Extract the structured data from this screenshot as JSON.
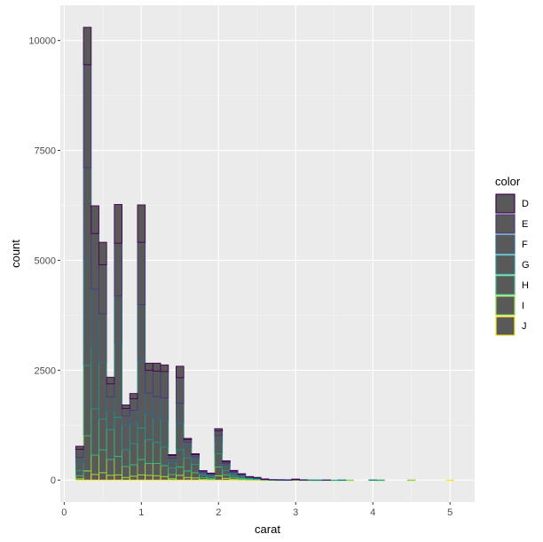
{
  "chart_data": {
    "type": "bar",
    "stacked": true,
    "xlabel": "carat",
    "ylabel": "count",
    "xlim": [
      -0.05,
      5.32
    ],
    "ylim": [
      -500,
      10800
    ],
    "x_ticks": [
      0,
      1,
      2,
      3,
      4,
      5
    ],
    "y_ticks": [
      0,
      2500,
      5000,
      7500,
      10000
    ],
    "y_tick_labels": [
      "0",
      "2500",
      "5000",
      "7500",
      "10000"
    ],
    "bin_width": 0.1,
    "bins_x": [
      0.2,
      0.3,
      0.4,
      0.5,
      0.6,
      0.7,
      0.8,
      0.9,
      1.0,
      1.1,
      1.2,
      1.3,
      1.4,
      1.5,
      1.6,
      1.7,
      1.8,
      1.9,
      2.0,
      2.1,
      2.2,
      2.3,
      2.4,
      2.5,
      2.6,
      2.7,
      2.8,
      2.9,
      3.0,
      3.1,
      3.2,
      3.3,
      3.4,
      3.5,
      3.6,
      3.7,
      3.8,
      3.9,
      4.0,
      4.1,
      4.2,
      4.3,
      4.4,
      4.5,
      4.6,
      4.7,
      4.8,
      4.9,
      5.0
    ],
    "legend_title": "color",
    "legend_position": "right",
    "panel_background": "#ebebeb",
    "grid": true,
    "bar_fill": "#595959",
    "series": [
      {
        "name": "J",
        "outline": "#fde725",
        "values": [
          30,
          210,
          130,
          170,
          110,
          120,
          60,
          90,
          120,
          110,
          100,
          80,
          30,
          110,
          60,
          50,
          15,
          10,
          100,
          40,
          20,
          10,
          5,
          5,
          2,
          2,
          1,
          1,
          3,
          1,
          1,
          0,
          1,
          0,
          1,
          0,
          0,
          0,
          1,
          0,
          0,
          0,
          0,
          1,
          0,
          0,
          0,
          0,
          1
        ]
      },
      {
        "name": "I",
        "outline": "#8fd744",
        "values": [
          70,
          800,
          440,
          520,
          360,
          420,
          250,
          260,
          350,
          270,
          280,
          250,
          100,
          190,
          150,
          120,
          40,
          25,
          200,
          80,
          40,
          25,
          15,
          10,
          5,
          3,
          2,
          2,
          5,
          2,
          1,
          1,
          1,
          0,
          1,
          1,
          0,
          0,
          2,
          1,
          0,
          0,
          0,
          1,
          0,
          0,
          0,
          0,
          0
        ]
      },
      {
        "name": "H",
        "outline": "#35b779",
        "values": [
          120,
          1600,
          1050,
          700,
          680,
          890,
          380,
          480,
          720,
          540,
          480,
          420,
          150,
          390,
          300,
          190,
          60,
          45,
          300,
          100,
          50,
          35,
          20,
          15,
          8,
          4,
          3,
          2,
          5,
          2,
          1,
          1,
          1,
          1,
          1,
          0,
          0,
          0,
          1,
          1,
          0,
          0,
          0,
          0,
          0,
          0,
          0,
          0,
          0
        ]
      },
      {
        "name": "G",
        "outline": "#21908d",
        "values": [
          170,
          2400,
          1420,
          1290,
          420,
          1680,
          560,
          470,
          1520,
          580,
          540,
          620,
          120,
          620,
          240,
          110,
          40,
          35,
          260,
          90,
          40,
          30,
          20,
          15,
          6,
          3,
          2,
          1,
          3,
          1,
          1,
          1,
          1,
          0,
          1,
          0,
          0,
          0,
          1,
          0,
          0,
          0,
          0,
          0,
          0,
          0,
          0,
          0,
          0
        ]
      },
      {
        "name": "F",
        "outline": "#31688e",
        "values": [
          130,
          2100,
          1300,
          1100,
          320,
          1080,
          210,
          290,
          1280,
          480,
          500,
          500,
          100,
          440,
          110,
          60,
          25,
          20,
          160,
          60,
          30,
          20,
          10,
          8,
          3,
          1,
          1,
          1,
          2,
          1,
          0,
          0,
          1,
          0,
          0,
          0,
          0,
          0,
          0,
          0,
          0,
          0,
          0,
          0,
          0,
          0,
          0,
          0,
          0
        ]
      },
      {
        "name": "E",
        "outline": "#443a83",
        "values": [
          180,
          2340,
          1270,
          1120,
          300,
          1200,
          170,
          260,
          1420,
          520,
          580,
          600,
          60,
          580,
          60,
          50,
          25,
          20,
          100,
          40,
          25,
          15,
          8,
          6,
          2,
          2,
          1,
          1,
          2,
          1,
          0,
          0,
          1,
          0,
          0,
          0,
          0,
          0,
          0,
          0,
          0,
          0,
          0,
          0,
          0,
          0,
          0,
          0,
          0
        ]
      },
      {
        "name": "D",
        "outline": "#440154",
        "values": [
          70,
          850,
          630,
          510,
          150,
          880,
          80,
          120,
          850,
          160,
          180,
          150,
          20,
          260,
          30,
          20,
          10,
          5,
          50,
          30,
          15,
          10,
          2,
          1,
          1,
          0,
          0,
          0,
          1,
          0,
          0,
          0,
          0,
          0,
          0,
          0,
          0,
          0,
          0,
          0,
          0,
          0,
          0,
          0,
          0,
          0,
          0,
          0,
          0
        ]
      }
    ],
    "legend_order": [
      "D",
      "E",
      "F",
      "G",
      "H",
      "I",
      "J"
    ]
  }
}
